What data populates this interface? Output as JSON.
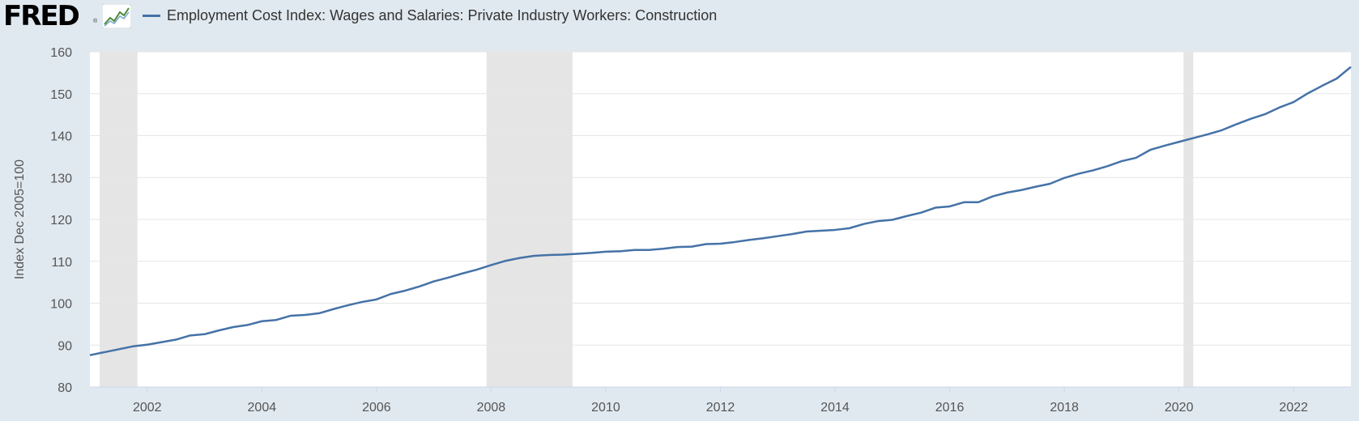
{
  "header": {
    "logo_text": "FRED",
    "logo_reg": "®",
    "logo_icon": "line-graph-icon"
  },
  "colors": {
    "background": "#e1e9f0",
    "plot_bg": "#ffffff",
    "series": "#4572a7",
    "recession": "#e5e5e5",
    "grid": "#e6e6e6"
  },
  "chart_data": {
    "type": "line",
    "title": "",
    "xlabel": "",
    "ylabel": "Index Dec 2005=100",
    "ylim": [
      80,
      160
    ],
    "xlim": [
      2001.0,
      2023.0
    ],
    "yticks": [
      80,
      90,
      100,
      110,
      120,
      130,
      140,
      150,
      160
    ],
    "xticks": [
      "2002",
      "2004",
      "2006",
      "2008",
      "2010",
      "2012",
      "2014",
      "2016",
      "2018",
      "2020",
      "2022"
    ],
    "grid": true,
    "legend_position": "top-left",
    "recessions": [
      {
        "start": 2001.17,
        "end": 2001.83
      },
      {
        "start": 2007.92,
        "end": 2009.42
      },
      {
        "start": 2020.08,
        "end": 2020.25
      }
    ],
    "series": [
      {
        "name": "Employment Cost Index: Wages and Salaries: Private Industry Workers: Construction",
        "x": [
          2001.0,
          2001.25,
          2001.5,
          2001.75,
          2002.0,
          2002.25,
          2002.5,
          2002.75,
          2003.0,
          2003.25,
          2003.5,
          2003.75,
          2004.0,
          2004.25,
          2004.5,
          2004.75,
          2005.0,
          2005.25,
          2005.5,
          2005.75,
          2006.0,
          2006.25,
          2006.5,
          2006.75,
          2007.0,
          2007.25,
          2007.5,
          2007.75,
          2008.0,
          2008.25,
          2008.5,
          2008.75,
          2009.0,
          2009.25,
          2009.5,
          2009.75,
          2010.0,
          2010.25,
          2010.5,
          2010.75,
          2011.0,
          2011.25,
          2011.5,
          2011.75,
          2012.0,
          2012.25,
          2012.5,
          2012.75,
          2013.0,
          2013.25,
          2013.5,
          2013.75,
          2014.0,
          2014.25,
          2014.5,
          2014.75,
          2015.0,
          2015.25,
          2015.5,
          2015.75,
          2016.0,
          2016.25,
          2016.5,
          2016.75,
          2017.0,
          2017.25,
          2017.5,
          2017.75,
          2018.0,
          2018.25,
          2018.5,
          2018.75,
          2019.0,
          2019.25,
          2019.5,
          2019.75,
          2020.0,
          2020.25,
          2020.5,
          2020.75,
          2021.0,
          2021.25,
          2021.5,
          2021.75,
          2022.0,
          2022.25,
          2022.5,
          2022.75,
          2023.0
        ],
        "values": [
          87.6,
          88.3,
          89.0,
          89.7,
          90.1,
          90.7,
          91.3,
          92.3,
          92.6,
          93.5,
          94.3,
          94.8,
          95.7,
          96.0,
          97.0,
          97.2,
          97.6,
          98.6,
          99.5,
          100.3,
          100.9,
          102.2,
          103.0,
          104.0,
          105.2,
          106.1,
          107.1,
          108.0,
          109.1,
          110.1,
          110.8,
          111.3,
          111.5,
          111.6,
          111.8,
          112.0,
          112.3,
          112.4,
          112.7,
          112.7,
          113.0,
          113.4,
          113.5,
          114.1,
          114.2,
          114.6,
          115.1,
          115.5,
          116.0,
          116.5,
          117.1,
          117.3,
          117.5,
          117.9,
          118.9,
          119.6,
          119.9,
          120.8,
          121.6,
          122.8,
          123.1,
          124.1,
          124.1,
          125.5,
          126.4,
          127.0,
          127.8,
          128.5,
          129.9,
          130.9,
          131.7,
          132.7,
          133.9,
          134.7,
          136.6,
          137.6,
          138.5,
          139.4,
          140.3,
          141.3,
          142.7,
          144.0,
          145.1,
          146.7,
          148.0,
          150.1,
          151.9,
          153.6,
          156.4
        ]
      }
    ]
  }
}
